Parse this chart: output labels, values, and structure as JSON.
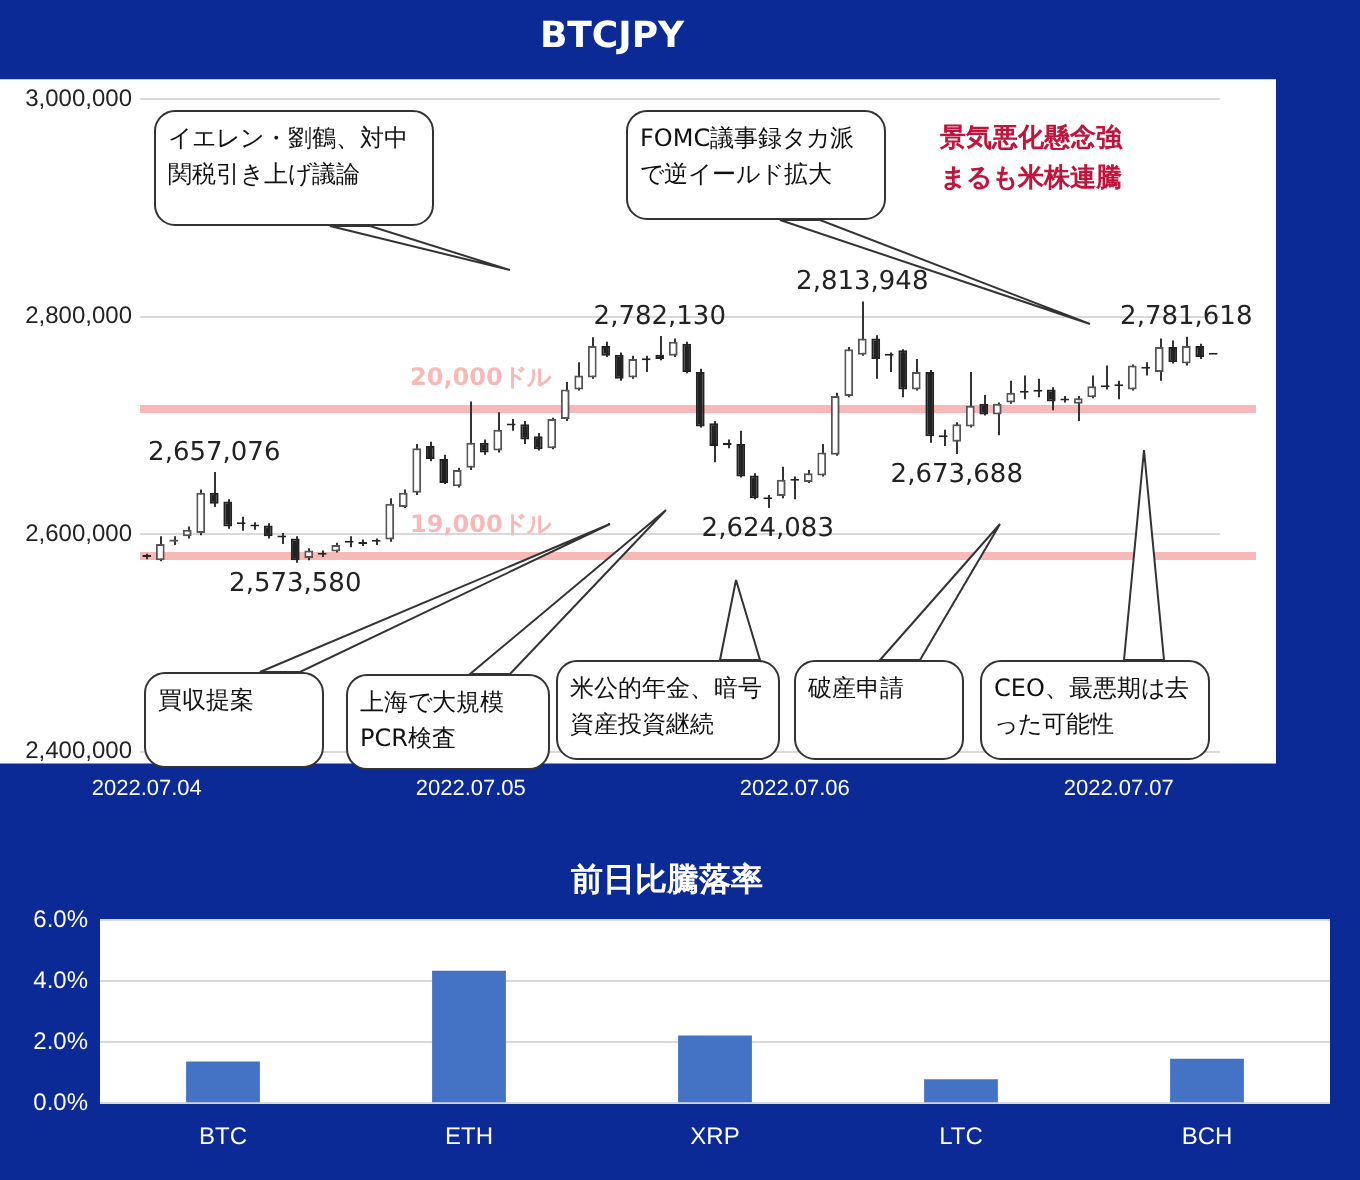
{
  "chart_data": [
    {
      "type": "candlestick",
      "title": "BTCJPY",
      "categories": [
        "2022.07.04",
        null,
        null,
        null,
        null,
        null,
        null,
        null,
        null,
        null,
        null,
        null,
        null,
        null,
        null,
        null,
        null,
        null,
        null,
        null,
        null,
        null,
        null,
        null,
        "2022.07.05",
        null,
        null,
        null,
        null,
        null,
        null,
        null,
        null,
        null,
        null,
        null,
        null,
        null,
        null,
        null,
        null,
        null,
        null,
        null,
        null,
        null,
        null,
        null,
        "2022.07.06",
        null,
        null,
        null,
        null,
        null,
        null,
        null,
        null,
        null,
        null,
        null,
        null,
        null,
        null,
        null,
        null,
        null,
        null,
        null,
        null,
        null,
        null,
        null,
        "2022.07.07",
        null,
        null,
        null,
        null,
        null,
        null,
        null
      ],
      "ohlc": [
        [
          2580000,
          2582000,
          2577000,
          2579000
        ],
        [
          2576000,
          2598000,
          2575000,
          2591000
        ],
        [
          2593000,
          2598000,
          2590000,
          2595000
        ],
        [
          2598000,
          2607000,
          2596000,
          2604000
        ],
        [
          2601000,
          2641000,
          2599000,
          2638000
        ],
        [
          2638000,
          2657076,
          2625000,
          2628000
        ],
        [
          2630000,
          2632000,
          2605000,
          2607000
        ],
        [
          2610000,
          2616000,
          2603000,
          2609000
        ],
        [
          2608000,
          2611000,
          2604000,
          2607000
        ],
        [
          2608000,
          2610000,
          2596000,
          2598000
        ],
        [
          2598000,
          2601000,
          2591000,
          2597000
        ],
        [
          2596000,
          2598000,
          2573580,
          2576000
        ],
        [
          2578000,
          2587000,
          2576000,
          2585000
        ],
        [
          2582000,
          2585000,
          2579000,
          2581000
        ],
        [
          2584000,
          2592000,
          2583000,
          2590000
        ],
        [
          2593000,
          2598000,
          2588000,
          2592000
        ],
        [
          2592000,
          2595000,
          2589000,
          2591000
        ],
        [
          2594000,
          2596000,
          2590000,
          2593000
        ],
        [
          2595000,
          2633000,
          2593000,
          2628000
        ],
        [
          2625000,
          2641000,
          2624000,
          2638000
        ],
        [
          2638000,
          2683000,
          2636000,
          2679000
        ],
        [
          2681000,
          2685000,
          2667000,
          2669000
        ],
        [
          2669000,
          2673000,
          2646000,
          2647000
        ],
        [
          2644000,
          2661000,
          2643000,
          2659000
        ],
        [
          2661000,
          2722000,
          2659000,
          2684000
        ],
        [
          2684000,
          2687000,
          2673000,
          2675000
        ],
        [
          2677000,
          2712000,
          2675000,
          2696000
        ],
        [
          2701000,
          2706000,
          2695000,
          2700000
        ],
        [
          2701000,
          2704000,
          2683000,
          2687000
        ],
        [
          2690000,
          2693000,
          2677000,
          2678000
        ],
        [
          2679000,
          2707000,
          2678000,
          2706000
        ],
        [
          2706000,
          2740000,
          2704000,
          2733000
        ],
        [
          2733000,
          2758000,
          2732000,
          2746000
        ],
        [
          2744000,
          2781000,
          2743000,
          2773000
        ],
        [
          2773000,
          2777000,
          2763000,
          2764000
        ],
        [
          2765000,
          2767000,
          2741000,
          2743000
        ],
        [
          2744000,
          2764000,
          2743000,
          2761000
        ],
        [
          2761000,
          2764000,
          2749000,
          2760000
        ],
        [
          2765000,
          2782130,
          2760000,
          2761000
        ],
        [
          2764000,
          2780000,
          2763000,
          2777000
        ],
        [
          2775000,
          2777000,
          2748000,
          2749000
        ],
        [
          2749000,
          2752000,
          2698000,
          2699000
        ],
        [
          2702000,
          2704000,
          2666000,
          2681000
        ],
        [
          2683000,
          2687000,
          2679000,
          2682000
        ],
        [
          2683000,
          2695000,
          2652000,
          2653000
        ],
        [
          2654000,
          2656000,
          2632000,
          2633000
        ],
        [
          2633000,
          2636000,
          2624083,
          2632000
        ],
        [
          2635000,
          2662000,
          2633000,
          2650000
        ],
        [
          2650000,
          2653000,
          2632000,
          2649000
        ],
        [
          2648000,
          2659000,
          2647000,
          2656000
        ],
        [
          2654000,
          2683000,
          2653000,
          2675000
        ],
        [
          2673000,
          2730000,
          2672000,
          2727000
        ],
        [
          2727000,
          2772000,
          2726000,
          2770000
        ],
        [
          2765000,
          2813948,
          2764000,
          2780000
        ],
        [
          2780000,
          2783000,
          2743000,
          2761000
        ],
        [
          2765000,
          2767000,
          2749000,
          2764000
        ],
        [
          2769000,
          2770000,
          2726000,
          2733000
        ],
        [
          2733000,
          2761000,
          2732000,
          2749000
        ],
        [
          2749000,
          2751000,
          2684000,
          2690000
        ],
        [
          2690000,
          2696000,
          2681000,
          2689000
        ],
        [
          2685000,
          2703000,
          2673688,
          2701000
        ],
        [
          2699000,
          2749000,
          2698000,
          2718000
        ],
        [
          2720000,
          2728000,
          2709000,
          2710000
        ],
        [
          2710000,
          2721000,
          2691000,
          2720000
        ],
        [
          2721000,
          2741000,
          2720000,
          2730000
        ],
        [
          2731000,
          2746000,
          2724000,
          2730000
        ],
        [
          2732000,
          2743000,
          2726000,
          2731000
        ],
        [
          2733000,
          2735000,
          2714000,
          2722000
        ],
        [
          2724000,
          2727000,
          2721000,
          2723000
        ],
        [
          2720000,
          2727000,
          2704000,
          2725000
        ],
        [
          2726000,
          2746000,
          2725000,
          2736000
        ],
        [
          2736000,
          2755000,
          2733000,
          2735000
        ],
        [
          2737000,
          2741000,
          2724000,
          2736000
        ],
        [
          2733000,
          2756000,
          2732000,
          2755000
        ],
        [
          2753000,
          2758000,
          2746000,
          2752000
        ],
        [
          2749000,
          2780000,
          2741000,
          2772000
        ],
        [
          2772000,
          2778000,
          2757000,
          2758000
        ],
        [
          2757000,
          2781618,
          2755000,
          2773000
        ],
        [
          2773000,
          2775000,
          2761000,
          2763000
        ],
        [
          2765000,
          2765000,
          2765000,
          2765000
        ]
      ],
      "ylim": [
        2400000,
        3000000
      ],
      "yticks": [
        {
          "value": 2400000,
          "label": "2,400,000"
        },
        {
          "value": 2600000,
          "label": "2,600,000"
        },
        {
          "value": 2800000,
          "label": "2,800,000"
        },
        {
          "value": 3000000,
          "label": "3,000,000"
        }
      ],
      "grid": "y",
      "ref_lines": [
        {
          "axis": "y",
          "value": 2715000,
          "label": "20,000ドル",
          "color": "#f7b8b8"
        },
        {
          "axis": "y",
          "value": 2580000,
          "label": "19,000ドル",
          "color": "#f7b8b8"
        }
      ],
      "annotations": [
        "イエレン・劉鶴、対中関税引き上げ議論",
        "FOMC議事録タカ派で逆イールド拡大",
        "景気悪化懸念強まるも米株連騰",
        "買収提案",
        "上海で大規模PCR検査",
        "米公的年金、暗号資産投資継続",
        "破産申請",
        "CEO、最悪期は去った可能性",
        {
          "text": "2,657,076",
          "y": 2657076
        },
        {
          "text": "2,573,580",
          "y": 2573580
        },
        {
          "text": "2,782,130",
          "y": 2782130
        },
        {
          "text": "2,624,083",
          "y": 2624083
        },
        {
          "text": "2,813,948",
          "y": 2813948
        },
        {
          "text": "2,673,688",
          "y": 2673688
        },
        {
          "text": "2,781,618",
          "y": 2781618
        }
      ]
    },
    {
      "type": "bar",
      "title": "前日比騰落率",
      "categories": [
        "BTC",
        "ETH",
        "XRP",
        "LTC",
        "BCH"
      ],
      "values": [
        1.37,
        4.35,
        2.22,
        0.79,
        1.46
      ],
      "color": "#4472c4",
      "ylim": [
        0,
        6
      ],
      "yticks": [
        {
          "value": 0,
          "label": "0.0%"
        },
        {
          "value": 2,
          "label": "2.0%"
        },
        {
          "value": 4,
          "label": "4.0%"
        },
        {
          "value": 6,
          "label": "6.0%"
        }
      ],
      "grid": "y"
    }
  ]
}
